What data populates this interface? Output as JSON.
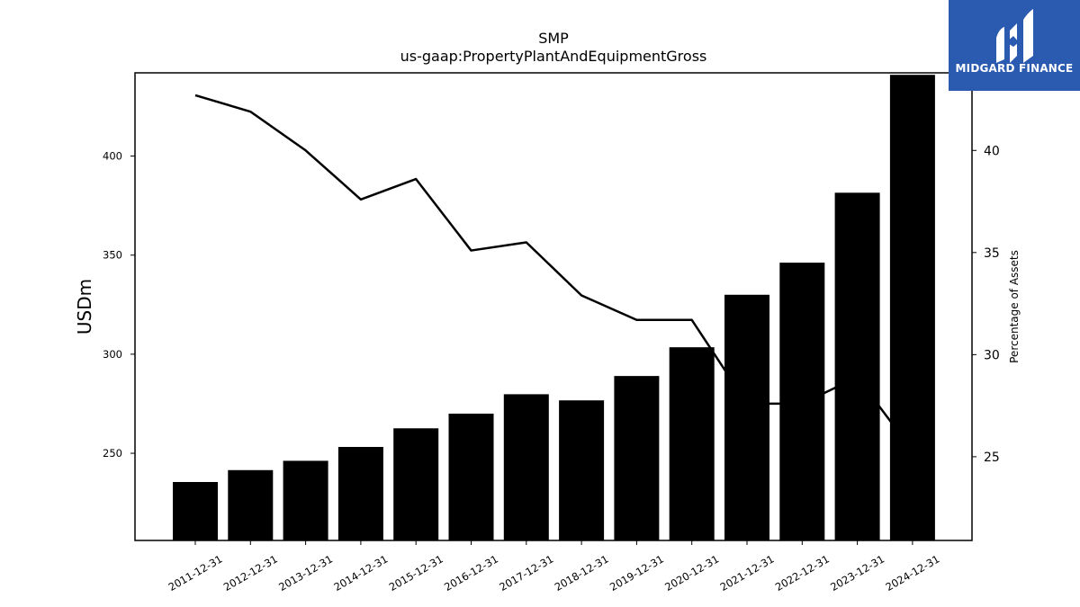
{
  "brand": {
    "name": "MIDGARD FINANCE",
    "color": "#2b5bb0"
  },
  "chart_data": {
    "type": "bar",
    "title": "SMP",
    "subtitle": "us-gaap:PropertyPlantAndEquipmentGross",
    "ylabel": "USDm",
    "y2label": "Percentage of Assets",
    "categories": [
      "2011-12-31",
      "2012-12-31",
      "2013-12-31",
      "2014-12-31",
      "2015-12-31",
      "2016-12-31",
      "2017-12-31",
      "2018-12-31",
      "2019-12-31",
      "2020-12-31",
      "2021-12-31",
      "2022-12-31",
      "2023-12-31",
      "2024-12-31"
    ],
    "bar_values": [
      235.5,
      241.5,
      246.2,
      253.2,
      262.6,
      270.0,
      279.8,
      276.7,
      289.0,
      303.5,
      330.0,
      346.2,
      381.5,
      441.0
    ],
    "line_values": [
      42.7,
      41.9,
      40.0,
      37.6,
      38.6,
      35.1,
      35.5,
      32.9,
      31.7,
      31.7,
      27.6,
      27.6,
      28.9,
      25.3
    ],
    "ylim": [
      206,
      442
    ],
    "y2lim": [
      20.9,
      43.8
    ],
    "yticks": [
      250,
      300,
      350,
      400
    ],
    "y2ticks": [
      25,
      30,
      35,
      40
    ],
    "bar_color": "#000000",
    "line_color": "#000000",
    "grid": false,
    "legend": "none"
  }
}
